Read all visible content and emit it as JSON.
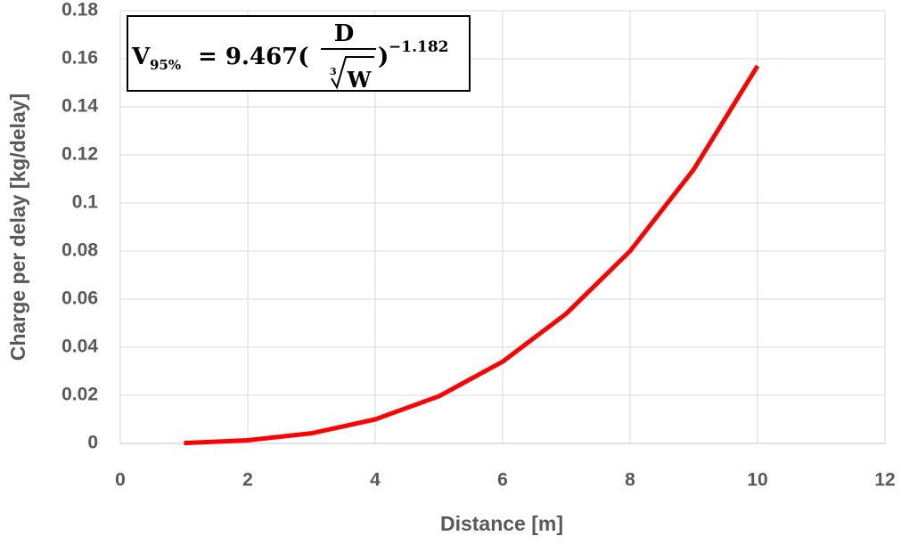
{
  "chart_data": {
    "type": "line",
    "x": [
      1,
      2,
      3,
      4,
      5,
      6,
      7,
      8,
      9,
      10
    ],
    "values": [
      0.00016,
      0.0013,
      0.0042,
      0.01,
      0.0196,
      0.034,
      0.054,
      0.08,
      0.114,
      0.157
    ],
    "color": "#ff0000",
    "xlabel": "Distance [m]",
    "ylabel": "Charge per delay [kg/delay]",
    "xlim": [
      0,
      12
    ],
    "xticks": [
      0,
      2,
      4,
      6,
      8,
      10,
      12
    ],
    "ylim": [
      0,
      0.18
    ],
    "yticks": [
      0,
      0.02,
      0.04,
      0.06,
      0.08,
      0.1,
      0.12,
      0.14,
      0.16,
      0.18
    ],
    "grid": true,
    "annotation": {
      "symbol": "V",
      "subscript": "95%",
      "equals": "= 9.467(",
      "numerator": "D",
      "root_index": "3",
      "denominator": "W",
      "close": ")",
      "exponent": "−1.182"
    }
  }
}
